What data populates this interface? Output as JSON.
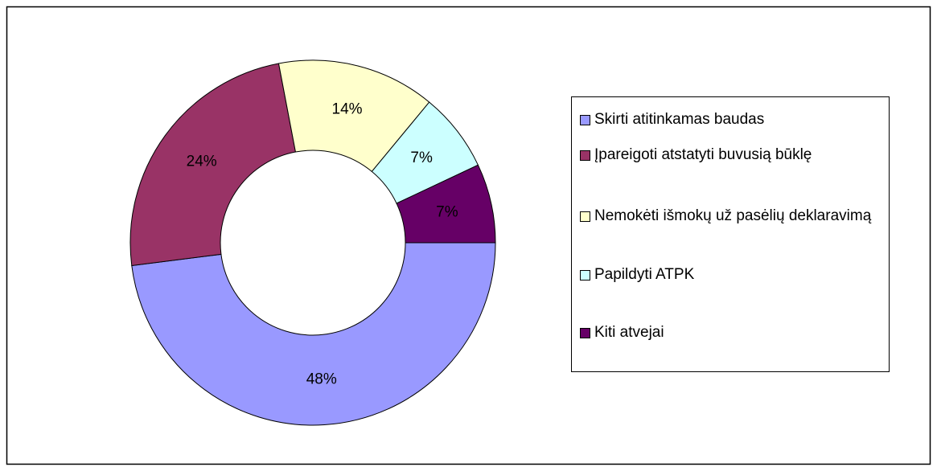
{
  "chart_data": {
    "type": "donut",
    "categories": [
      "Skirti atitinkamas baudas",
      "Įpareigoti atstatyti buvusią būklę",
      "Nemokėti išmokų už pasėlių deklaravimą",
      "Papildyti ATPK",
      "Kiti atvejai"
    ],
    "values": [
      48,
      24,
      14,
      7,
      7
    ],
    "value_labels": [
      "48%",
      "24%",
      "14%",
      "7%",
      "7%"
    ],
    "colors": [
      "#9999ff",
      "#993366",
      "#ffffcc",
      "#ccffff",
      "#660066"
    ],
    "legend": "right"
  }
}
